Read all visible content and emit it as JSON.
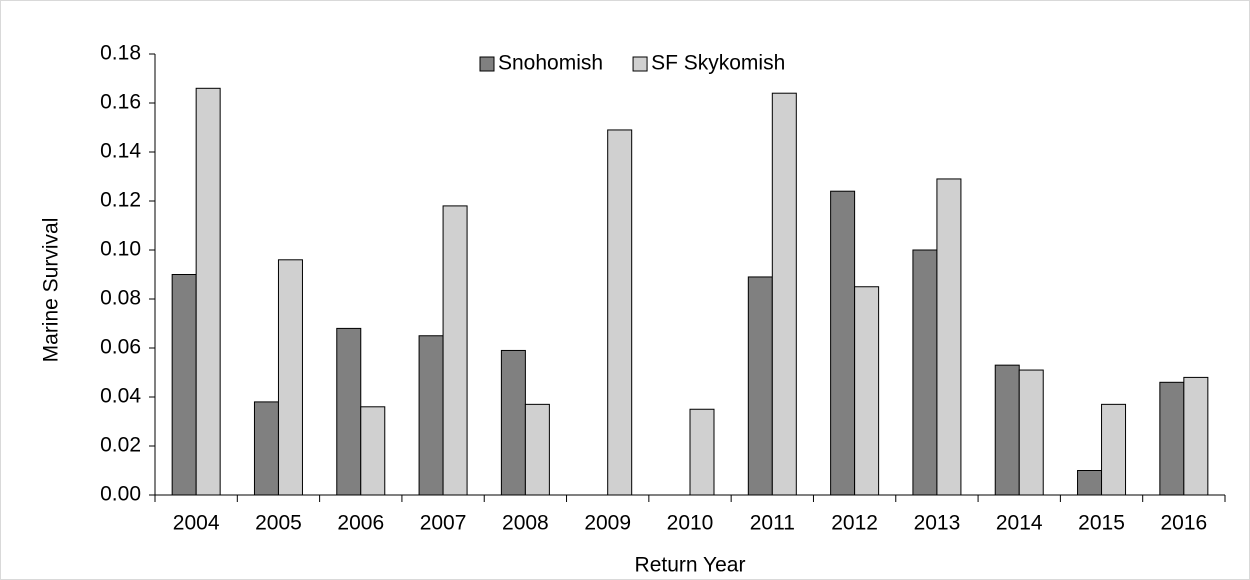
{
  "chart_data": {
    "type": "bar",
    "x_label": "Return Year",
    "y_label": "Marine Survival",
    "categories": [
      "2004",
      "2005",
      "2006",
      "2007",
      "2008",
      "2009",
      "2010",
      "2011",
      "2012",
      "2013",
      "2014",
      "2015",
      "2016"
    ],
    "series": [
      {
        "name": "Snohomish",
        "color": "#808080",
        "values": [
          0.09,
          0.038,
          0.068,
          0.065,
          0.059,
          null,
          null,
          0.089,
          0.124,
          0.1,
          0.053,
          0.01,
          0.046
        ]
      },
      {
        "name": "SF Skykomish",
        "color": "#d0d0d0",
        "values": [
          0.166,
          0.096,
          0.036,
          0.118,
          0.037,
          0.149,
          0.035,
          0.164,
          0.085,
          0.129,
          0.051,
          0.037,
          0.048
        ]
      }
    ],
    "ylim": [
      0,
      0.18
    ],
    "yticks": [
      {
        "value": 0,
        "label": "0.00"
      },
      {
        "value": 0.02,
        "label": "0.02"
      },
      {
        "value": 0.04,
        "label": "0.04"
      },
      {
        "value": 0.06,
        "label": "0.06"
      },
      {
        "value": 0.08,
        "label": "0.08"
      },
      {
        "value": 0.1,
        "label": "0.10"
      },
      {
        "value": 0.12,
        "label": "0.12"
      },
      {
        "value": 0.14,
        "label": "0.14"
      },
      {
        "value": 0.16,
        "label": "0.16"
      },
      {
        "value": 0.18,
        "label": "0.18"
      }
    ],
    "legend": "top"
  }
}
